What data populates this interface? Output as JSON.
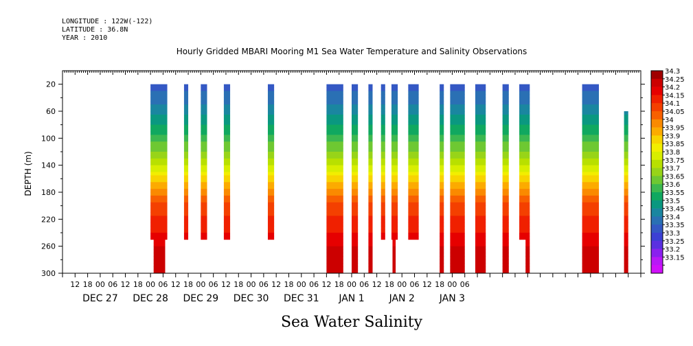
{
  "header": {
    "longitude": "LONGITUDE : 122W(-122)",
    "latitude": "LATITUDE : 36.8N",
    "year": "YEAR : 2010"
  },
  "chart_data": {
    "type": "heatmap",
    "title": "Hourly Gridded MBARI Mooring M1 Sea Water Temperature and Salinity Observations",
    "xlabel": "Sea Water Salinity",
    "ylabel": "DEPTH (m)",
    "ylim": [
      300,
      0
    ],
    "y_ticks": [
      20,
      60,
      100,
      140,
      180,
      220,
      260,
      300
    ],
    "x_hour_ticks": [
      "12",
      "18",
      "00",
      "06",
      "12",
      "18",
      "00",
      "06",
      "12",
      "18",
      "00",
      "06",
      "12",
      "18",
      "00",
      "06",
      "12",
      "18",
      "00",
      "06",
      "12",
      "18",
      "00",
      "06",
      "12",
      "18",
      "00",
      "06",
      "12",
      "18",
      "00",
      "06"
    ],
    "x_day_labels": [
      "DEC 27",
      "DEC 28",
      "DEC 29",
      "DEC 30",
      "DEC 31",
      "JAN  1",
      "JAN  2",
      "JAN  3"
    ],
    "legend_levels": [
      "34.3",
      "34.25",
      "34.2",
      "34.15",
      "34.1",
      "34.05",
      "34",
      "33.95",
      "33.9",
      "33.85",
      "33.8",
      "33.75",
      "33.7",
      "33.65",
      "33.6",
      "33.55",
      "33.5",
      "33.45",
      "33.4",
      "33.35",
      "33.3",
      "33.25",
      "33.2",
      "33.15"
    ],
    "colors": [
      "#a00000",
      "#cc0000",
      "#e60000",
      "#f02000",
      "#f44000",
      "#f86000",
      "#fa8a00",
      "#fcab00",
      "#f8d400",
      "#f2ee00",
      "#d8ee00",
      "#b8e000",
      "#98d418",
      "#6ec832",
      "#3cb850",
      "#10a860",
      "#0a9880",
      "#1a86a0",
      "#2a70b4",
      "#3458c4",
      "#3c40d4",
      "#5a30e0",
      "#8a20ee",
      "#b818f6",
      "#d010fa"
    ],
    "profile_depths": [
      20,
      40,
      60,
      80,
      100,
      120,
      140,
      160,
      180,
      200,
      220,
      240,
      260,
      280,
      300
    ],
    "profile_values": [
      33.38,
      33.42,
      33.48,
      33.55,
      33.62,
      33.7,
      33.8,
      33.92,
      34.02,
      34.12,
      34.16,
      34.2,
      34.25,
      34.28,
      34.3
    ],
    "columns": [
      {
        "start_h": 48,
        "end_h": 56,
        "top": 20,
        "bottom": 250
      },
      {
        "start_h": 49.5,
        "end_h": 55,
        "top": 250,
        "bottom": 300
      },
      {
        "start_h": 64,
        "end_h": 66,
        "top": 20,
        "bottom": 250
      },
      {
        "start_h": 72,
        "end_h": 75,
        "top": 20,
        "bottom": 250
      },
      {
        "start_h": 83,
        "end_h": 86,
        "top": 20,
        "bottom": 250
      },
      {
        "start_h": 104,
        "end_h": 107,
        "top": 20,
        "bottom": 250
      },
      {
        "start_h": 132,
        "end_h": 140,
        "top": 20,
        "bottom": 300
      },
      {
        "start_h": 144,
        "end_h": 147,
        "top": 20,
        "bottom": 300
      },
      {
        "start_h": 152,
        "end_h": 154,
        "top": 20,
        "bottom": 300
      },
      {
        "start_h": 158,
        "end_h": 160,
        "top": 20,
        "bottom": 250
      },
      {
        "start_h": 163,
        "end_h": 166,
        "top": 20,
        "bottom": 250
      },
      {
        "start_h": 163.5,
        "end_h": 165,
        "top": 250,
        "bottom": 300
      },
      {
        "start_h": 171,
        "end_h": 176,
        "top": 20,
        "bottom": 250
      },
      {
        "start_h": 186,
        "end_h": 188,
        "top": 20,
        "bottom": 300
      },
      {
        "start_h": 191,
        "end_h": 198,
        "top": 20,
        "bottom": 300
      },
      {
        "start_h": 203,
        "end_h": 208,
        "top": 20,
        "bottom": 300
      },
      {
        "start_h": 216,
        "end_h": 219,
        "top": 20,
        "bottom": 300
      },
      {
        "start_h": 224,
        "end_h": 229,
        "top": 20,
        "bottom": 250
      },
      {
        "start_h": 227,
        "end_h": 229,
        "top": 250,
        "bottom": 300
      },
      {
        "start_h": 254,
        "end_h": 262,
        "top": 20,
        "bottom": 300
      },
      {
        "start_h": 274,
        "end_h": 276,
        "top": 60,
        "bottom": 300
      }
    ]
  }
}
